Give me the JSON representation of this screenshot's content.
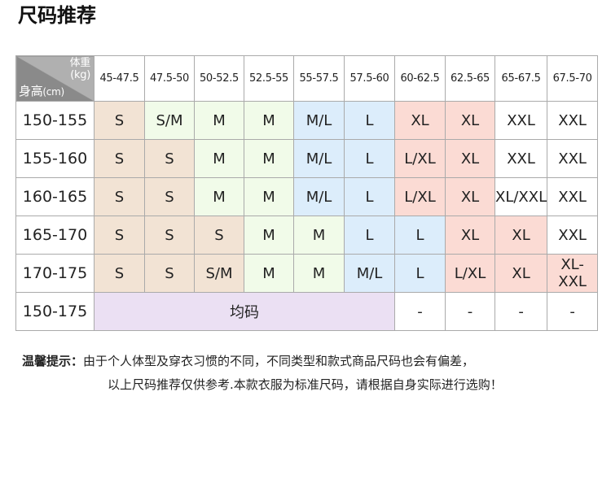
{
  "title": "尺码推荐",
  "corner": {
    "weight_label": "体重",
    "weight_unit": "(kg)",
    "height_label": "身高",
    "height_unit": "(cm)"
  },
  "columns": [
    "45-47.5",
    "47.5-50",
    "50-52.5",
    "52.5-55",
    "55-57.5",
    "57.5-60",
    "60-62.5",
    "62.5-65",
    "65-67.5",
    "67.5-70"
  ],
  "colors": {
    "tan": "#f2e3d4",
    "green": "#f1fbe9",
    "blue": "#dcedfb",
    "pink": "#fbdbd4",
    "purple": "#ebe0f3"
  },
  "rows": [
    {
      "height": "150-155",
      "cells": [
        [
          "S",
          "tan"
        ],
        [
          "S/M",
          "green"
        ],
        [
          "M",
          "green"
        ],
        [
          "M",
          "green"
        ],
        [
          "M/L",
          "blue"
        ],
        [
          "L",
          "blue"
        ],
        [
          "XL",
          "pink"
        ],
        [
          "XL",
          "pink"
        ],
        [
          "XXL",
          "white"
        ],
        [
          "XXL",
          "white"
        ]
      ]
    },
    {
      "height": "155-160",
      "cells": [
        [
          "S",
          "tan"
        ],
        [
          "S",
          "tan"
        ],
        [
          "M",
          "green"
        ],
        [
          "M",
          "green"
        ],
        [
          "M/L",
          "blue"
        ],
        [
          "L",
          "blue"
        ],
        [
          "L/XL",
          "pink"
        ],
        [
          "XL",
          "pink"
        ],
        [
          "XXL",
          "white"
        ],
        [
          "XXL",
          "white"
        ]
      ]
    },
    {
      "height": "160-165",
      "cells": [
        [
          "S",
          "tan"
        ],
        [
          "S",
          "tan"
        ],
        [
          "M",
          "green"
        ],
        [
          "M",
          "green"
        ],
        [
          "M/L",
          "blue"
        ],
        [
          "L",
          "blue"
        ],
        [
          "L/XL",
          "pink"
        ],
        [
          "XL",
          "pink"
        ],
        [
          "XL/XXL",
          "white"
        ],
        [
          "XXL",
          "white"
        ]
      ]
    },
    {
      "height": "165-170",
      "cells": [
        [
          "S",
          "tan"
        ],
        [
          "S",
          "tan"
        ],
        [
          "S",
          "tan"
        ],
        [
          "M",
          "green"
        ],
        [
          "M",
          "green"
        ],
        [
          "L",
          "blue"
        ],
        [
          "L",
          "blue"
        ],
        [
          "XL",
          "pink"
        ],
        [
          "XL",
          "pink"
        ],
        [
          "XXL",
          "white"
        ]
      ]
    },
    {
      "height": "170-175",
      "cells": [
        [
          "S",
          "tan"
        ],
        [
          "S",
          "tan"
        ],
        [
          "S/M",
          "tan"
        ],
        [
          "M",
          "green"
        ],
        [
          "M",
          "green"
        ],
        [
          "M/L",
          "blue"
        ],
        [
          "L",
          "blue"
        ],
        [
          "L/XL",
          "pink"
        ],
        [
          "XL",
          "pink"
        ],
        [
          "XL-XXL",
          "pink"
        ]
      ]
    }
  ],
  "last_row": {
    "height": "150-175",
    "free_size": "均码",
    "rest": [
      "-",
      "-",
      "-",
      "-"
    ]
  },
  "tip": {
    "label": "温馨提示：",
    "line1": "由于个人体型及穿衣习惯的不同，不同类型和款式商品尺码也会有偏差，",
    "line2": "以上尺码推荐仅供参考.本款衣服为标准尺码，请根据自身实际进行选购！"
  }
}
